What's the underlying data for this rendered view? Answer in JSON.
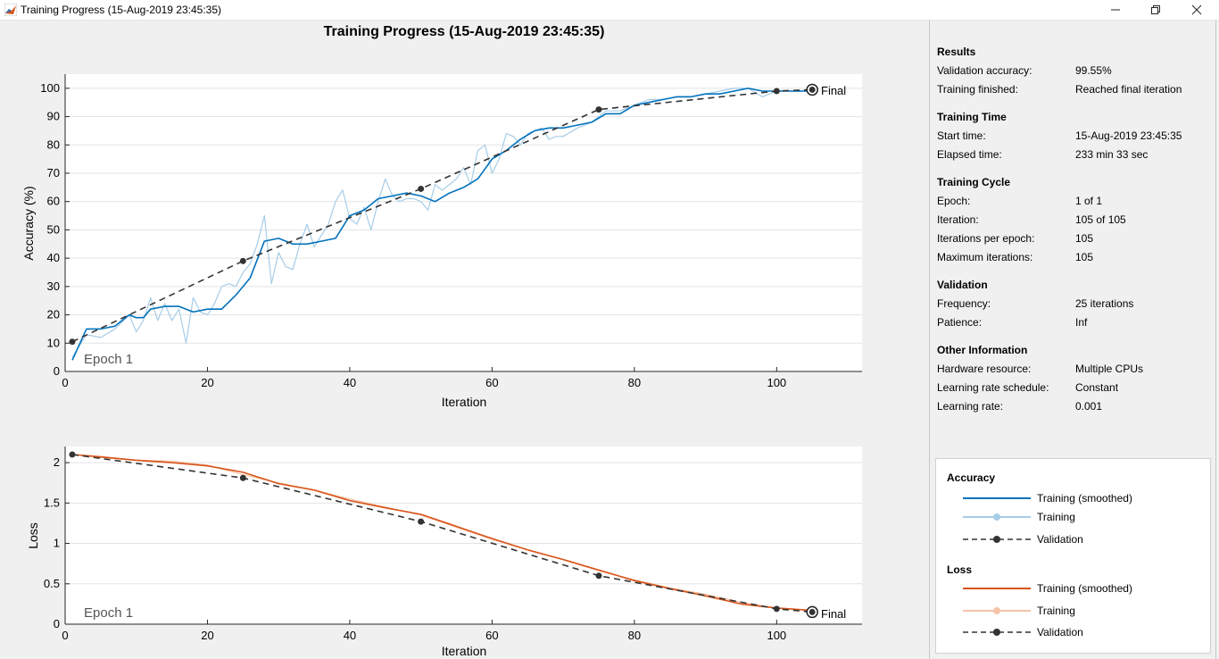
{
  "window": {
    "title": "Training Progress (15-Aug-2019 23:45:35)"
  },
  "plot": {
    "title": "Training Progress (15-Aug-2019 23:45:35)",
    "epoch_label_top": "Epoch 1",
    "epoch_label_bottom": "Epoch 1",
    "final_label_top": "Final",
    "final_label_bottom": "Final"
  },
  "chart_data": [
    {
      "type": "line",
      "ylabel": "Accuracy (%)",
      "xlabel": "Iteration",
      "xlim": [
        0,
        112
      ],
      "ylim": [
        0,
        105
      ],
      "xticks": [
        "0",
        "20",
        "40",
        "60",
        "80",
        "100"
      ],
      "yticks": [
        "0",
        "10",
        "20",
        "30",
        "40",
        "50",
        "60",
        "70",
        "80",
        "90",
        "100"
      ],
      "grid": "y",
      "series": [
        {
          "name": "Training",
          "color": "#a6cde8",
          "x": [
            1,
            3,
            5,
            7,
            9,
            10,
            11,
            12,
            13,
            14,
            15,
            16,
            17,
            18,
            19,
            20,
            21,
            22,
            23,
            24,
            25,
            26,
            27,
            28,
            29,
            30,
            31,
            32,
            33,
            34,
            35,
            36,
            37,
            38,
            39,
            40,
            41,
            42,
            43,
            44,
            45,
            46,
            47,
            48,
            49,
            50,
            51,
            52,
            53,
            54,
            55,
            56,
            57,
            58,
            59,
            60,
            61,
            62,
            63,
            64,
            65,
            66,
            67,
            68,
            69,
            70,
            72,
            74,
            76,
            78,
            80,
            82,
            84,
            86,
            88,
            90,
            92,
            94,
            96,
            98,
            100,
            102,
            104,
            105
          ],
          "y": [
            5,
            13,
            12,
            15,
            20,
            14,
            18,
            26,
            18,
            24,
            18,
            22,
            10,
            26,
            21,
            20,
            24,
            30,
            31,
            30,
            35,
            38,
            45,
            55,
            31,
            42,
            37,
            36,
            45,
            52,
            44,
            48,
            52,
            60,
            64,
            54,
            52,
            58,
            50,
            60,
            68,
            62,
            60,
            61,
            61,
            60,
            57,
            66,
            64,
            66,
            68,
            72,
            66,
            78,
            80,
            70,
            75,
            84,
            83,
            80,
            84,
            85,
            86,
            82,
            83,
            83,
            86,
            88,
            92,
            92,
            94,
            96,
            96,
            97,
            97,
            98,
            99,
            100,
            100,
            97,
            99,
            99,
            99,
            99
          ]
        },
        {
          "name": "Training (smoothed)",
          "color": "#0072bd",
          "x": [
            1,
            3,
            5,
            7,
            9,
            10,
            11,
            12,
            14,
            16,
            18,
            20,
            22,
            24,
            26,
            28,
            30,
            32,
            34,
            36,
            38,
            40,
            42,
            44,
            46,
            48,
            50,
            52,
            54,
            56,
            58,
            60,
            62,
            64,
            66,
            68,
            70,
            72,
            74,
            76,
            78,
            80,
            82,
            84,
            86,
            88,
            90,
            92,
            94,
            96,
            98,
            100,
            102,
            104,
            105
          ],
          "y": [
            4,
            15,
            15,
            16,
            20,
            19,
            19,
            22,
            23,
            23,
            21,
            22,
            22,
            27,
            33,
            46,
            47,
            45,
            45,
            46,
            47,
            55,
            57,
            61,
            62,
            63,
            62,
            60,
            63,
            65,
            68,
            75,
            78,
            82,
            85,
            86,
            86,
            87,
            88,
            91,
            91,
            94,
            95,
            96,
            97,
            97,
            98,
            98,
            99,
            100,
            99,
            99,
            99,
            99,
            99
          ],
          "width": 1.6
        },
        {
          "name": "Validation",
          "color": "#333333",
          "x": [
            1,
            25,
            50,
            75,
            100,
            105
          ],
          "y": [
            10.5,
            39,
            64.5,
            92.5,
            99,
            99.5
          ],
          "dashed": true
        }
      ]
    },
    {
      "type": "line",
      "ylabel": "Loss",
      "xlabel": "Iteration",
      "xlim": [
        0,
        112
      ],
      "ylim": [
        0,
        2.2
      ],
      "xticks": [
        "0",
        "20",
        "40",
        "60",
        "80",
        "100"
      ],
      "yticks": [
        "0",
        "0.5",
        "1",
        "1.5",
        "2"
      ],
      "grid": "y",
      "series": [
        {
          "name": "Training",
          "color": "#f4c3a6",
          "x": [
            1,
            5,
            10,
            15,
            20,
            25,
            30,
            35,
            40,
            45,
            50,
            55,
            60,
            65,
            70,
            75,
            80,
            85,
            90,
            95,
            100,
            105
          ],
          "y": [
            2.1,
            2.08,
            2.03,
            2.02,
            1.97,
            1.85,
            1.75,
            1.66,
            1.55,
            1.45,
            1.35,
            1.2,
            1.05,
            0.92,
            0.8,
            0.66,
            0.55,
            0.45,
            0.37,
            0.27,
            0.2,
            0.17
          ]
        },
        {
          "name": "Training (smoothed)",
          "color": "#d95319",
          "x": [
            1,
            5,
            10,
            15,
            20,
            25,
            30,
            35,
            40,
            45,
            50,
            55,
            60,
            65,
            70,
            75,
            80,
            85,
            90,
            95,
            100,
            105
          ],
          "y": [
            2.1,
            2.07,
            2.03,
            2.0,
            1.96,
            1.88,
            1.74,
            1.66,
            1.53,
            1.44,
            1.36,
            1.21,
            1.06,
            0.92,
            0.8,
            0.67,
            0.54,
            0.44,
            0.35,
            0.25,
            0.2,
            0.17
          ],
          "width": 1.6
        },
        {
          "name": "Validation",
          "color": "#333333",
          "x": [
            1,
            25,
            50,
            75,
            100,
            105
          ],
          "y": [
            2.1,
            1.81,
            1.27,
            0.6,
            0.19,
            0.15
          ],
          "dashed": true
        }
      ]
    }
  ],
  "results": {
    "title": "Results",
    "rows": [
      {
        "label": "Validation accuracy:",
        "value": "99.55%"
      },
      {
        "label": "Training finished:",
        "value": "Reached final iteration"
      }
    ]
  },
  "training_time": {
    "title": "Training Time",
    "rows": [
      {
        "label": "Start time:",
        "value": "15-Aug-2019 23:45:35"
      },
      {
        "label": "Elapsed time:",
        "value": "233 min 33 sec"
      }
    ]
  },
  "training_cycle": {
    "title": "Training Cycle",
    "rows": [
      {
        "label": "Epoch:",
        "value": "1 of 1"
      },
      {
        "label": "Iteration:",
        "value": "105 of 105"
      },
      {
        "label": "Iterations per epoch:",
        "value": "105"
      },
      {
        "label": "Maximum iterations:",
        "value": "105"
      }
    ]
  },
  "validation": {
    "title": "Validation",
    "rows": [
      {
        "label": "Frequency:",
        "value": "25 iterations"
      },
      {
        "label": "Patience:",
        "value": "Inf"
      }
    ]
  },
  "other_info": {
    "title": "Other Information",
    "rows": [
      {
        "label": "Hardware resource:",
        "value": "Multiple CPUs"
      },
      {
        "label": "Learning rate schedule:",
        "value": "Constant"
      },
      {
        "label": "Learning rate:",
        "value": "0.001"
      }
    ]
  },
  "legend": {
    "accuracy_title": "Accuracy",
    "loss_title": "Loss",
    "accuracy_items": [
      {
        "label": "Training (smoothed)",
        "color": "#0072bd",
        "style": "solid"
      },
      {
        "label": "Training",
        "color": "#a6cde8",
        "style": "marker"
      },
      {
        "label": "Validation",
        "color": "#333333",
        "style": "dashed-marker"
      }
    ],
    "loss_items": [
      {
        "label": "Training (smoothed)",
        "color": "#d95319",
        "style": "solid"
      },
      {
        "label": "Training",
        "color": "#f4c3a6",
        "style": "marker"
      },
      {
        "label": "Validation",
        "color": "#333333",
        "style": "dashed-marker"
      }
    ]
  }
}
